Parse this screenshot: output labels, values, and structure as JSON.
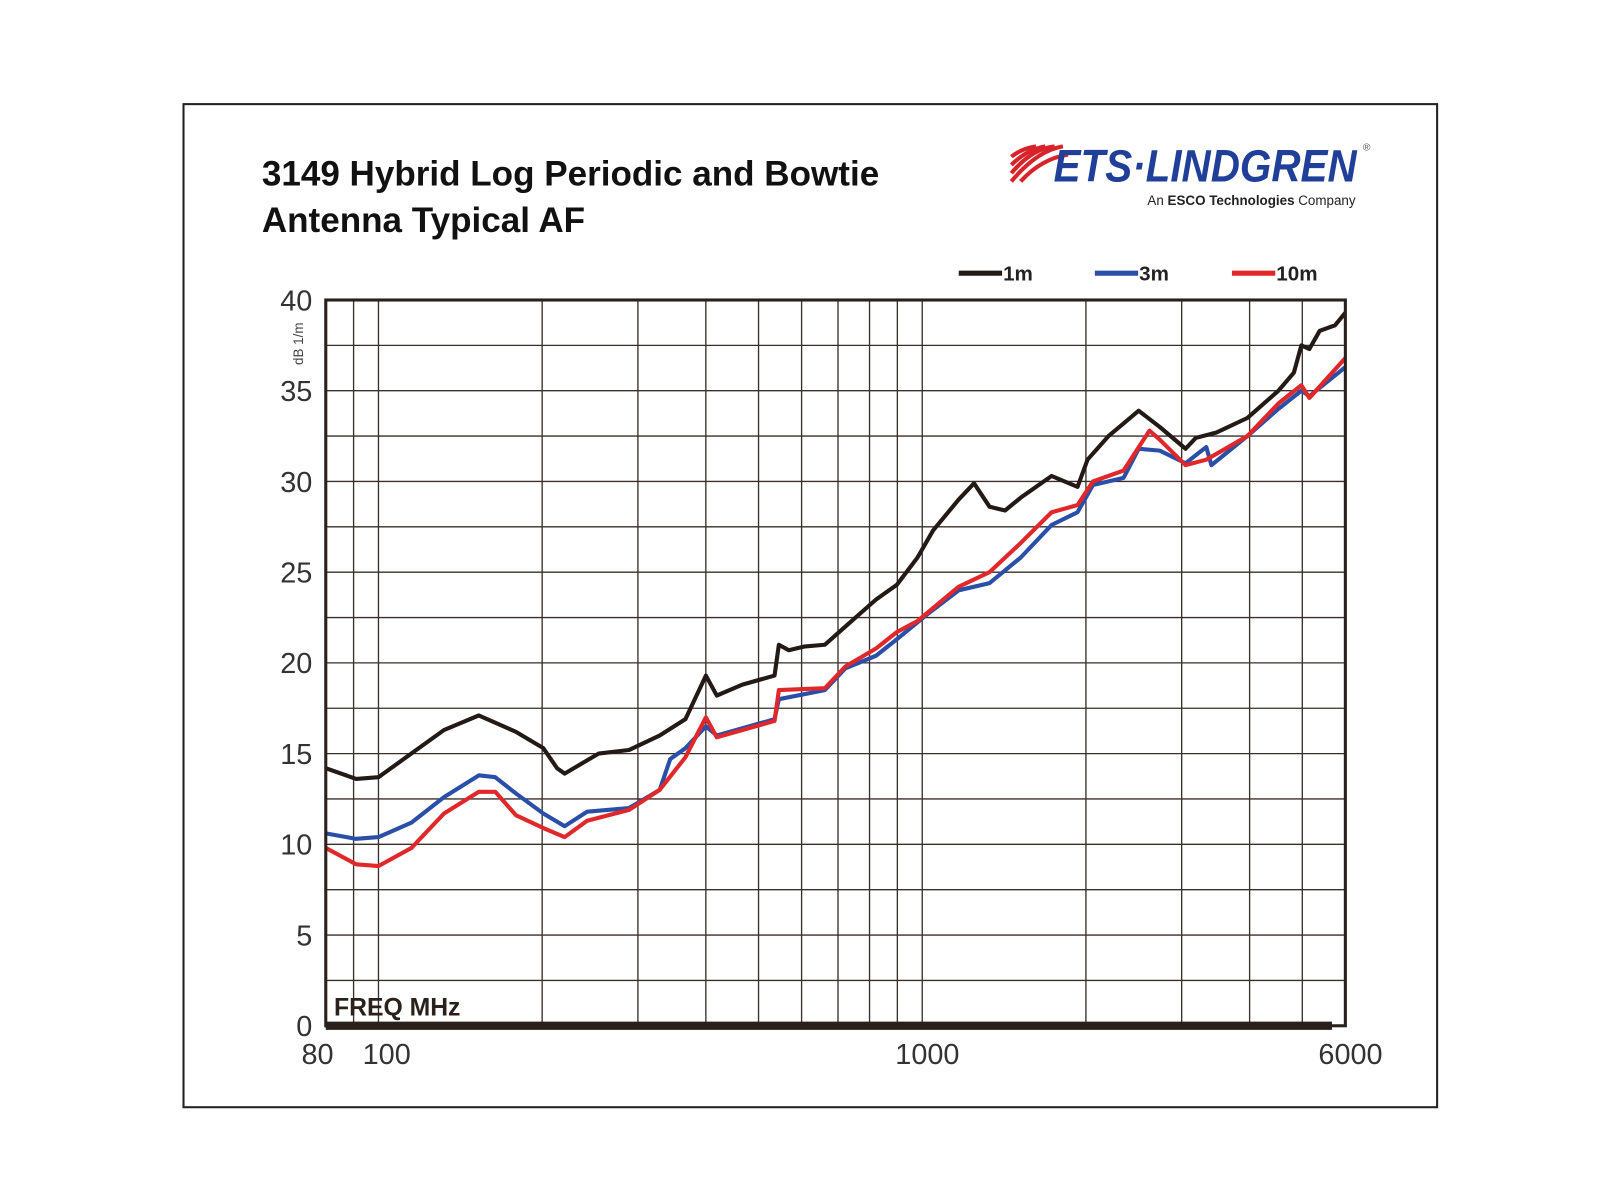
{
  "title_line1": "3149 Hybrid Log Periodic and Bowtie",
  "title_line2": "Antenna Typical AF",
  "logo": {
    "brand": "ETS·LINDGREN",
    "registered": "®",
    "tagline_prefix": "An ",
    "tagline_bold": "ESCO Technologies",
    "tagline_suffix": " Company"
  },
  "chart_data": {
    "type": "line",
    "title": "3149 Hybrid Log Periodic and Bowtie Antenna Typical AF",
    "xlabel": "FREQ MHz",
    "ylabel": "dB 1/m",
    "xscale": "log",
    "xlim": [
      80,
      6000
    ],
    "ylim": [
      0,
      40
    ],
    "xticks": [
      80,
      100,
      1000,
      6000
    ],
    "xtick_labels": [
      "80",
      "100",
      "1000",
      "6000"
    ],
    "x_gridlines": [
      90,
      100,
      200,
      300,
      400,
      500,
      600,
      700,
      800,
      900,
      1000,
      2000,
      3000,
      4000,
      5000,
      6000
    ],
    "yticks": [
      0,
      5,
      10,
      15,
      20,
      25,
      30,
      35,
      40
    ],
    "ytick_labels": [
      "0",
      "5",
      "10",
      "15",
      "20",
      "25",
      "30",
      "35",
      "40"
    ],
    "y_minor_step": 2.5,
    "grid": true,
    "legend_position": "top-right",
    "series": [
      {
        "name": "1m",
        "label": "1m",
        "color": "#231a16",
        "x": [
          80,
          91,
          100,
          132,
          153,
          179,
          201,
          213,
          220,
          254,
          289,
          329,
          367,
          400,
          419,
          467,
          535,
          545,
          568,
          606,
          662,
          722,
          823,
          898,
          980,
          1047,
          1167,
          1245,
          1330,
          1420,
          1517,
          1730,
          1930,
          2014,
          2200,
          2346,
          2500,
          2735,
          3050,
          3185,
          3477,
          3964,
          4520,
          4825,
          4980,
          5153,
          5383,
          5744,
          6000
        ],
        "y": [
          14.2,
          13.6,
          13.7,
          16.3,
          17.1,
          16.2,
          15.3,
          14.2,
          13.9,
          15.0,
          15.2,
          16.0,
          16.9,
          19.3,
          18.2,
          18.8,
          19.3,
          21.0,
          20.7,
          20.9,
          21.0,
          22.0,
          23.5,
          24.3,
          25.8,
          27.3,
          29.0,
          29.9,
          28.6,
          28.4,
          29.1,
          30.3,
          29.7,
          31.2,
          32.5,
          33.2,
          33.9,
          33.0,
          31.8,
          32.4,
          32.7,
          33.5,
          35.0,
          36.0,
          37.5,
          37.3,
          38.3,
          38.6,
          39.3
        ]
      },
      {
        "name": "3m",
        "label": "3m",
        "color": "#2a4fa8",
        "x": [
          80,
          91,
          100,
          115,
          132,
          153,
          164,
          179,
          201,
          220,
          242,
          289,
          329,
          344,
          367,
          400,
          419,
          535,
          545,
          662,
          722,
          823,
          898,
          1024,
          1167,
          1330,
          1517,
          1730,
          1930,
          2060,
          2346,
          2500,
          2735,
          3050,
          3330,
          3403,
          3964,
          4520,
          4980,
          5153,
          6000
        ],
        "y": [
          10.6,
          10.3,
          10.4,
          11.2,
          12.6,
          13.8,
          13.7,
          12.8,
          11.7,
          11.0,
          11.8,
          12.0,
          13.0,
          14.7,
          15.3,
          16.5,
          16.0,
          16.9,
          18.0,
          18.5,
          19.7,
          20.4,
          21.3,
          22.7,
          24.0,
          24.4,
          25.8,
          27.6,
          28.3,
          29.8,
          30.2,
          31.8,
          31.7,
          31.0,
          31.9,
          30.9,
          32.5,
          34.0,
          35.0,
          34.7,
          36.3
        ]
      },
      {
        "name": "10m",
        "label": "10m",
        "color": "#e0282a",
        "x": [
          80,
          91,
          100,
          115,
          132,
          153,
          164,
          179,
          201,
          220,
          242,
          289,
          329,
          367,
          400,
          419,
          535,
          545,
          662,
          722,
          823,
          898,
          980,
          1167,
          1330,
          1517,
          1730,
          1930,
          2060,
          2346,
          2618,
          2735,
          3050,
          3330,
          3964,
          4520,
          4980,
          5153,
          6000
        ],
        "y": [
          9.8,
          8.9,
          8.8,
          9.8,
          11.7,
          12.9,
          12.9,
          11.6,
          10.9,
          10.4,
          11.3,
          11.9,
          13.0,
          14.8,
          17.0,
          15.9,
          16.8,
          18.5,
          18.6,
          19.8,
          20.8,
          21.7,
          22.3,
          24.2,
          25.0,
          26.6,
          28.3,
          28.7,
          30.0,
          30.6,
          32.8,
          32.3,
          30.9,
          31.2,
          32.5,
          34.3,
          35.3,
          34.6,
          36.8
        ]
      }
    ]
  }
}
